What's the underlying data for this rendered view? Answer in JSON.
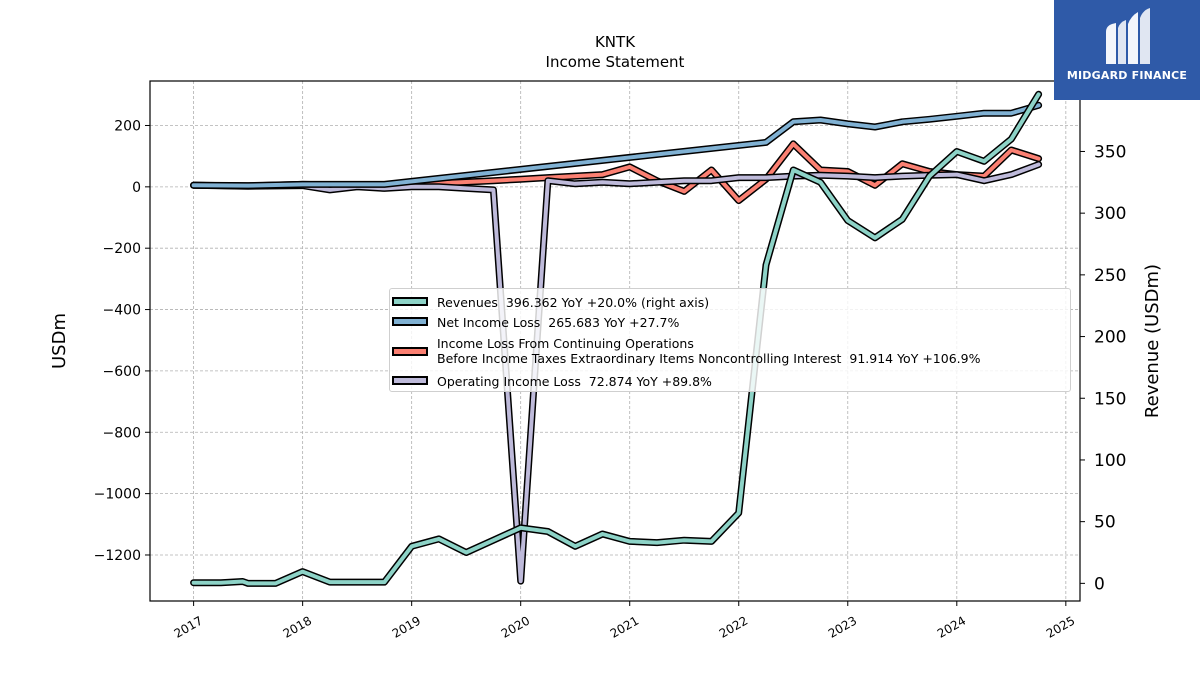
{
  "chart_data": {
    "type": "line",
    "title": "KNTK",
    "subtitle": "Income Statement",
    "ylabel": "USDm",
    "y2label": "Revenue (USDm)",
    "ylim": [
      -1350,
      345
    ],
    "y2lim": [
      -14.3,
      407.1
    ],
    "yticks": [
      200,
      0,
      -200,
      -400,
      -600,
      -800,
      -1000,
      -1200
    ],
    "ytick_labels": [
      "200",
      "0",
      "−200",
      "−400",
      "−600",
      "−800",
      "−1000",
      "−1200"
    ],
    "y2ticks": [
      0,
      50,
      100,
      150,
      200,
      250,
      300,
      350,
      400
    ],
    "y2tick_labels": [
      "0",
      "50",
      "100",
      "150",
      "200",
      "250",
      "300",
      "350",
      "400"
    ],
    "xticks": [
      2017,
      2018,
      2019,
      2020,
      2021,
      2022,
      2023,
      2024,
      2025
    ],
    "xtick_labels": [
      "2017",
      "2018",
      "2019",
      "2020",
      "2021",
      "2022",
      "2023",
      "2024",
      "2025"
    ],
    "xlim": [
      2016.6,
      2025.13
    ],
    "grid": true,
    "legend_position": "center-right",
    "series": [
      {
        "name": "Revenues",
        "legend_label": "Revenues  396.362 YoY +20.0% (right axis)",
        "color": "#8dd3c7",
        "axis": "right",
        "x": [
          2017.0,
          2017.25,
          2017.45,
          2017.5,
          2017.75,
          2018.0,
          2018.25,
          2018.5,
          2018.75,
          2019.0,
          2019.25,
          2019.5,
          2019.75,
          2020.0,
          2020.25,
          2020.5,
          2020.75,
          2021.0,
          2021.25,
          2021.5,
          2021.75,
          2022.0,
          2022.25,
          2022.5,
          2022.75,
          2023.0,
          2023.25,
          2023.5,
          2023.75,
          2024.0,
          2024.25,
          2024.5,
          2024.75
        ],
        "values": [
          0.5,
          0.5,
          1.5,
          0.0,
          0.0,
          9.5,
          1.0,
          1.0,
          1.0,
          30.0,
          36.0,
          25.0,
          35.0,
          45.0,
          42.0,
          30.0,
          40.0,
          34.0,
          33.0,
          35.0,
          34.0,
          57.0,
          258.0,
          335.0,
          325.0,
          294.0,
          280.0,
          295.0,
          330.0,
          350.0,
          342.0,
          360.0,
          396.362
        ]
      },
      {
        "name": "Net Income Loss",
        "legend_label": "Net Income Loss  265.683 YoY +27.7%",
        "color": "#80b1d3",
        "axis": "left",
        "x": [
          2017.0,
          2017.5,
          2018.0,
          2018.5,
          2018.75,
          2022.25,
          2022.5,
          2022.75,
          2023.0,
          2023.25,
          2023.5,
          2023.75,
          2024.0,
          2024.25,
          2024.5,
          2024.75
        ],
        "values": [
          5,
          4,
          8,
          8,
          8,
          145,
          212,
          218,
          205,
          195,
          212,
          220,
          230,
          240,
          240,
          265.683
        ]
      },
      {
        "name": "Income Loss From Continuing Operations Before Income Taxes Extraordinary Items Noncontrolling Interest",
        "legend_label": "Income Loss From Continuing Operations\nBefore Income Taxes Extraordinary Items Noncontrolling Interest  91.914 YoY +106.9%",
        "color": "#fb8072",
        "axis": "left",
        "x": [
          2017.0,
          2017.5,
          2018.0,
          2018.5,
          2018.75,
          2019.25,
          2019.75,
          2020.0,
          2020.25,
          2020.5,
          2020.75,
          2021.0,
          2021.25,
          2021.5,
          2021.75,
          2022.0,
          2022.25,
          2022.5,
          2022.75,
          2023.0,
          2023.25,
          2023.5,
          2023.75,
          2024.0,
          2024.25,
          2024.5,
          2024.75
        ],
        "values": [
          5,
          3,
          8,
          5,
          4,
          12,
          20,
          25,
          30,
          35,
          40,
          65,
          20,
          -15,
          55,
          -45,
          25,
          140,
          55,
          50,
          5,
          75,
          50,
          40,
          35,
          120,
          91.914
        ]
      },
      {
        "name": "Operating Income Loss",
        "legend_label": "Operating Income Loss  72.874 YoY +89.8%",
        "color": "#bebada",
        "axis": "left",
        "x": [
          2017.0,
          2017.5,
          2018.0,
          2018.25,
          2018.5,
          2018.75,
          2019.0,
          2019.25,
          2019.5,
          2019.75,
          2020.0,
          2020.25,
          2020.5,
          2020.75,
          2021.0,
          2021.25,
          2021.5,
          2021.75,
          2022.0,
          2022.25,
          2022.5,
          2022.75,
          2023.0,
          2023.25,
          2023.5,
          2023.75,
          2024.0,
          2024.25,
          2024.5,
          2024.75
        ],
        "values": [
          5,
          2,
          4,
          -10,
          0,
          -5,
          0,
          0,
          -5,
          -10,
          -1285,
          20,
          10,
          15,
          10,
          15,
          20,
          20,
          30,
          30,
          35,
          38,
          35,
          30,
          35,
          38,
          40,
          20,
          40,
          72.874
        ]
      }
    ]
  },
  "logo": {
    "text": "MIDGARD FINANCE",
    "icon": "midgard-finance-logo-icon",
    "background": "#2f5aa8"
  }
}
